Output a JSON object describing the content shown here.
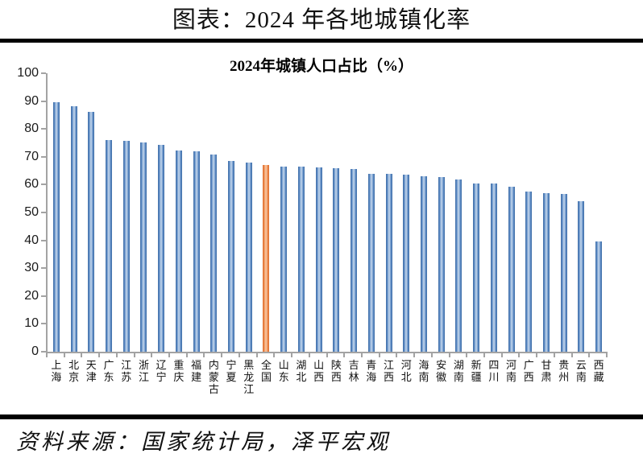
{
  "page": {
    "title": "图表：2024 年各地城镇化率"
  },
  "chart_data": {
    "type": "bar",
    "title": "2024年城镇人口占比（%）",
    "categories": [
      "上海",
      "北京",
      "天津",
      "广东",
      "江苏",
      "浙江",
      "辽宁",
      "重庆",
      "福建",
      "内蒙古",
      "宁夏",
      "黑龙江",
      "全国",
      "山东",
      "湖北",
      "山西",
      "陕西",
      "吉林",
      "青海",
      "江西",
      "河北",
      "海南",
      "安徽",
      "湖南",
      "新疆",
      "四川",
      "河南",
      "广西",
      "甘肃",
      "贵州",
      "云南",
      "西藏"
    ],
    "values": [
      89.6,
      88.3,
      86.0,
      76.0,
      75.6,
      75.3,
      74.3,
      72.3,
      71.9,
      70.8,
      68.5,
      67.9,
      67.0,
      66.5,
      66.4,
      66.2,
      66.0,
      65.7,
      64.0,
      63.8,
      63.5,
      63.0,
      62.6,
      62.0,
      60.5,
      60.3,
      59.2,
      57.6,
      57.0,
      56.7,
      54.2,
      39.5
    ],
    "highlight_index": 12,
    "highlight_category": "全国",
    "xlabel": "",
    "ylabel": "",
    "ylim": [
      0,
      100
    ],
    "yticks": [
      0,
      10,
      20,
      30,
      40,
      50,
      60,
      70,
      80,
      90,
      100
    ],
    "grid": false,
    "legend": false,
    "colors": {
      "bar_dark": "#3E6DA5",
      "bar_mid": "#5D8AC4",
      "bar_light": "#B9CFE8",
      "highlight_dark": "#D96A2B",
      "highlight_mid": "#EE8A4D",
      "highlight_light": "#F7C29B",
      "axis": "#A3A3A3"
    }
  },
  "footer": {
    "source": "资料来源：国家统计局，泽平宏观"
  }
}
